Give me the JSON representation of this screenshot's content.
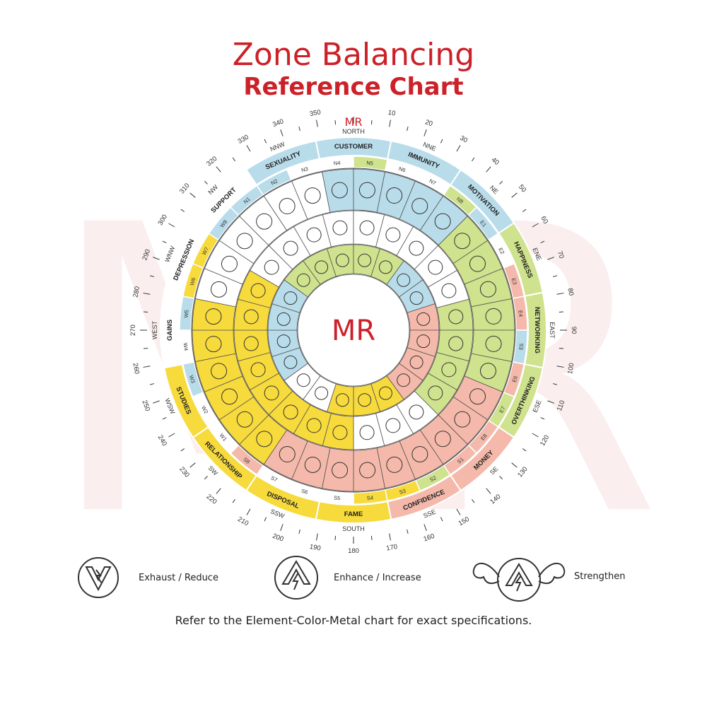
{
  "title": {
    "line1": "Zone Balancing",
    "line2": "Reference Chart"
  },
  "logo": {
    "text": "MR"
  },
  "colors": {
    "red": "#cc2128",
    "blue": "#b9dcea",
    "green": "#cfe28d",
    "yellow": "#f7da3c",
    "pink": "#f4b9aa",
    "white": "#ffffff",
    "ring_line": "#555555",
    "watermark": "#fbeeee"
  },
  "directions": [
    {
      "label": "NORTH",
      "deg": 0
    },
    {
      "label": "NNE",
      "deg": 22.5
    },
    {
      "label": "NE",
      "deg": 45
    },
    {
      "label": "ENE",
      "deg": 67.5
    },
    {
      "label": "EAST",
      "deg": 90
    },
    {
      "label": "ESE",
      "deg": 112.5
    },
    {
      "label": "SE",
      "deg": 135
    },
    {
      "label": "SSE",
      "deg": 157.5
    },
    {
      "label": "SOUTH",
      "deg": 180
    },
    {
      "label": "SSW",
      "deg": 202.5
    },
    {
      "label": "SW",
      "deg": 225
    },
    {
      "label": "WSW",
      "deg": 247.5
    },
    {
      "label": "WEST",
      "deg": 270
    },
    {
      "label": "WNW",
      "deg": 292.5
    },
    {
      "label": "NW",
      "deg": 315
    },
    {
      "label": "NNW",
      "deg": 337.5
    }
  ],
  "degree_labels": [
    "350",
    "10",
    "20",
    "30",
    "40",
    "50",
    "60",
    "70",
    "80",
    "90",
    "100",
    "110",
    "120",
    "130",
    "140",
    "150",
    "160",
    "170",
    "180",
    "190",
    "200",
    "210",
    "220",
    "230",
    "240",
    "250",
    "260",
    "270",
    "280",
    "290",
    "300",
    "310",
    "320",
    "330",
    "340"
  ],
  "zones": [
    {
      "name": "CUSTOMER",
      "color": "blue"
    },
    {
      "name": "IMMUNITY",
      "color": "blue"
    },
    {
      "name": "MOTIVATION",
      "color": "blue"
    },
    {
      "name": "HAPPINESS",
      "color": "green"
    },
    {
      "name": "NETWORKING",
      "color": "green"
    },
    {
      "name": "OVERTHINKING",
      "color": "green"
    },
    {
      "name": "MONEY",
      "color": "pink"
    },
    {
      "name": "CONFIDENCE",
      "color": "pink"
    },
    {
      "name": "FAME",
      "color": "yellow"
    },
    {
      "name": "DISPOSAL",
      "color": "yellow"
    },
    {
      "name": "RELATIONSHIP",
      "color": "yellow"
    },
    {
      "name": "STUDIES",
      "color": "yellow"
    },
    {
      "name": "GAINS",
      "color": "white"
    },
    {
      "name": "DEPRESSION",
      "color": "white"
    },
    {
      "name": "SUPPORT",
      "color": "white"
    },
    {
      "name": "SEXUALITY",
      "color": "blue"
    }
  ],
  "padas": [
    {
      "code": "N4",
      "color": "white"
    },
    {
      "code": "N5",
      "color": "green"
    },
    {
      "code": "N6",
      "color": "white"
    },
    {
      "code": "N7",
      "color": "white"
    },
    {
      "code": "N8",
      "color": "green"
    },
    {
      "code": "E1",
      "color": "blue"
    },
    {
      "code": "E2",
      "color": "white"
    },
    {
      "code": "E3",
      "color": "pink"
    },
    {
      "code": "E4",
      "color": "pink"
    },
    {
      "code": "E5",
      "color": "blue"
    },
    {
      "code": "E6",
      "color": "pink"
    },
    {
      "code": "E7",
      "color": "green"
    },
    {
      "code": "E8",
      "color": "pink"
    },
    {
      "code": "S1",
      "color": "pink"
    },
    {
      "code": "S2",
      "color": "green"
    },
    {
      "code": "S3",
      "color": "yellow"
    },
    {
      "code": "S4",
      "color": "yellow"
    },
    {
      "code": "S5",
      "color": "white"
    },
    {
      "code": "S6",
      "color": "white"
    },
    {
      "code": "S7",
      "color": "white"
    },
    {
      "code": "S8",
      "color": "pink"
    },
    {
      "code": "W1",
      "color": "white"
    },
    {
      "code": "W2",
      "color": "white"
    },
    {
      "code": "W3",
      "color": "blue"
    },
    {
      "code": "W4",
      "color": "white"
    },
    {
      "code": "W5",
      "color": "blue"
    },
    {
      "code": "W6",
      "color": "yellow"
    },
    {
      "code": "W7",
      "color": "yellow"
    },
    {
      "code": "W8",
      "color": "blue"
    },
    {
      "code": "N1",
      "color": "blue"
    },
    {
      "code": "N2",
      "color": "blue"
    },
    {
      "code": "N3",
      "color": "white"
    }
  ],
  "rings": {
    "outer": [
      "blue",
      "blue",
      "blue",
      "blue",
      "blue",
      "green",
      "green",
      "green",
      "green",
      "green",
      "green",
      "pink",
      "pink",
      "pink",
      "pink",
      "pink",
      "pink",
      "pink",
      "pink",
      "pink",
      "yellow",
      "yellow",
      "yellow",
      "yellow",
      "yellow",
      "yellow",
      "white",
      "white",
      "white",
      "white",
      "white",
      "white"
    ],
    "middle": [
      "white",
      "white",
      "white",
      "white",
      "white",
      "white",
      "green",
      "green",
      "green",
      "green",
      "white",
      "white",
      "white",
      "yellow",
      "yellow",
      "yellow",
      "yellow",
      "yellow",
      "yellow",
      "yellow",
      "yellow",
      "white",
      "white",
      "white"
    ],
    "inner": [
      "green",
      "green",
      "green",
      "green",
      "blue",
      "blue",
      "pink",
      "pink",
      "pink",
      "pink",
      "yellow",
      "yellow",
      "yellow",
      "white",
      "white",
      "blue",
      "blue",
      "blue",
      "blue",
      "green"
    ]
  },
  "legend": [
    {
      "label": "Exhaust / Reduce",
      "icon": "exhaust-icon"
    },
    {
      "label": "Enhance / Increase",
      "icon": "enhance-icon"
    },
    {
      "label": "Strengthen",
      "icon": "strengthen-icon"
    }
  ],
  "footnote": "Refer to the Element-Color-Metal chart for exact specifications."
}
